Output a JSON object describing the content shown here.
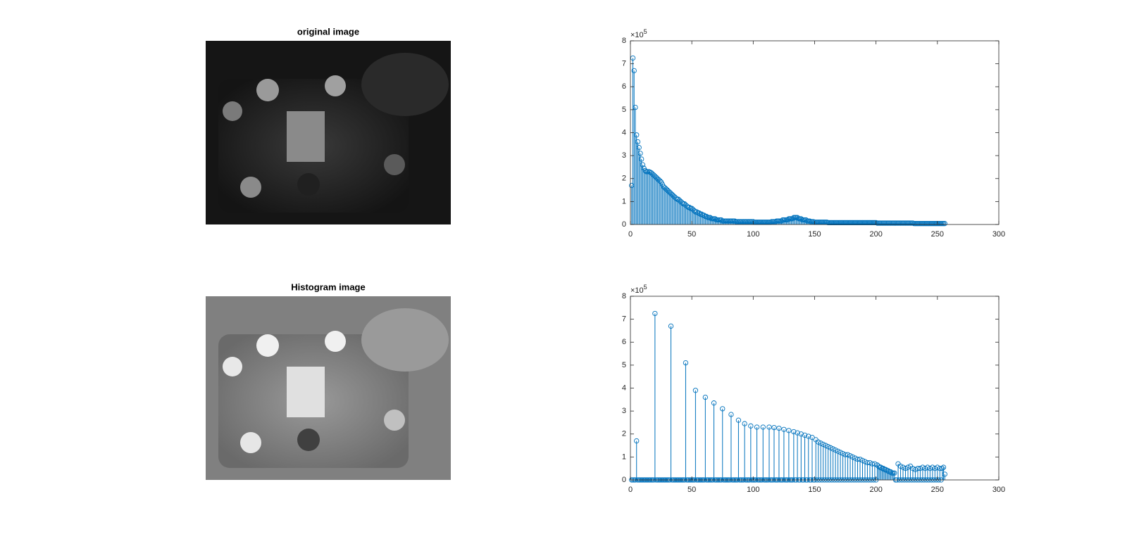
{
  "images": [
    {
      "title": "original image"
    },
    {
      "title": "Histogram image"
    }
  ],
  "chart_data": [
    {
      "type": "stem",
      "color": "#0072bd",
      "xlim": [
        0,
        300
      ],
      "xticks": [
        0,
        50,
        100,
        150,
        200,
        250,
        300
      ],
      "ylim": [
        0,
        8
      ],
      "yticks": [
        0,
        1,
        2,
        3,
        4,
        5,
        6,
        7,
        8
      ],
      "y_multiplier": "×10",
      "y_multiplier_exponent": "5",
      "x": [
        1,
        2,
        3,
        4,
        5,
        6,
        7,
        8,
        9,
        10,
        11,
        12,
        13,
        14,
        15,
        16,
        17,
        18,
        19,
        20,
        21,
        22,
        23,
        24,
        25,
        26,
        27,
        28,
        29,
        30,
        31,
        32,
        33,
        34,
        35,
        36,
        37,
        38,
        39,
        40,
        41,
        42,
        43,
        44,
        45,
        46,
        47,
        48,
        49,
        50,
        51,
        52,
        53,
        54,
        55,
        56,
        57,
        58,
        59,
        60,
        61,
        62,
        63,
        64,
        65,
        66,
        67,
        68,
        69,
        70,
        71,
        72,
        73,
        74,
        75,
        76,
        77,
        78,
        79,
        80,
        81,
        82,
        83,
        84,
        85,
        86,
        87,
        88,
        89,
        90,
        91,
        92,
        93,
        94,
        95,
        96,
        97,
        98,
        99,
        100,
        101,
        102,
        103,
        104,
        105,
        106,
        107,
        108,
        109,
        110,
        111,
        112,
        113,
        114,
        115,
        116,
        117,
        118,
        119,
        120,
        121,
        122,
        123,
        124,
        125,
        126,
        127,
        128,
        129,
        130,
        131,
        132,
        133,
        134,
        135,
        136,
        137,
        138,
        139,
        140,
        141,
        142,
        143,
        144,
        145,
        146,
        147,
        148,
        149,
        150,
        151,
        152,
        153,
        154,
        155,
        156,
        157,
        158,
        159,
        160,
        161,
        162,
        163,
        164,
        165,
        166,
        167,
        168,
        169,
        170,
        171,
        172,
        173,
        174,
        175,
        176,
        177,
        178,
        179,
        180,
        181,
        182,
        183,
        184,
        185,
        186,
        187,
        188,
        189,
        190,
        191,
        192,
        193,
        194,
        195,
        196,
        197,
        198,
        199,
        200,
        201,
        202,
        203,
        204,
        205,
        206,
        207,
        208,
        209,
        210,
        211,
        212,
        213,
        214,
        215,
        216,
        217,
        218,
        219,
        220,
        221,
        222,
        223,
        224,
        225,
        226,
        227,
        228,
        229,
        230,
        231,
        232,
        233,
        234,
        235,
        236,
        237,
        238,
        239,
        240,
        241,
        242,
        243,
        244,
        245,
        246,
        247,
        248,
        249,
        250,
        251,
        252,
        253,
        254,
        255,
        256
      ],
      "values": [
        1.7,
        7.25,
        6.7,
        5.1,
        3.9,
        3.6,
        3.35,
        3.1,
        2.85,
        2.6,
        2.45,
        2.35,
        2.3,
        2.3,
        2.3,
        2.28,
        2.25,
        2.2,
        2.15,
        2.1,
        2.05,
        2.0,
        1.95,
        1.9,
        1.85,
        1.75,
        1.65,
        1.6,
        1.55,
        1.5,
        1.45,
        1.4,
        1.35,
        1.3,
        1.25,
        1.2,
        1.15,
        1.1,
        1.1,
        1.05,
        1.0,
        0.95,
        0.9,
        0.9,
        0.85,
        0.8,
        0.75,
        0.75,
        0.7,
        0.7,
        0.65,
        0.6,
        0.55,
        0.55,
        0.5,
        0.5,
        0.45,
        0.45,
        0.4,
        0.4,
        0.35,
        0.35,
        0.3,
        0.3,
        0.3,
        0.25,
        0.25,
        0.25,
        0.25,
        0.2,
        0.2,
        0.2,
        0.2,
        0.2,
        0.15,
        0.15,
        0.15,
        0.15,
        0.15,
        0.15,
        0.15,
        0.15,
        0.15,
        0.15,
        0.15,
        0.12,
        0.12,
        0.12,
        0.12,
        0.12,
        0.12,
        0.12,
        0.12,
        0.12,
        0.12,
        0.12,
        0.12,
        0.12,
        0.12,
        0.12,
        0.1,
        0.1,
        0.1,
        0.1,
        0.1,
        0.1,
        0.1,
        0.1,
        0.1,
        0.1,
        0.1,
        0.1,
        0.1,
        0.1,
        0.12,
        0.12,
        0.12,
        0.12,
        0.15,
        0.15,
        0.15,
        0.15,
        0.15,
        0.2,
        0.2,
        0.2,
        0.2,
        0.2,
        0.25,
        0.25,
        0.25,
        0.25,
        0.3,
        0.3,
        0.3,
        0.3,
        0.25,
        0.25,
        0.25,
        0.2,
        0.2,
        0.2,
        0.2,
        0.15,
        0.15,
        0.15,
        0.12,
        0.12,
        0.12,
        0.1,
        0.1,
        0.1,
        0.1,
        0.1,
        0.1,
        0.1,
        0.1,
        0.1,
        0.1,
        0.1,
        0.08,
        0.08,
        0.08,
        0.08,
        0.08,
        0.08,
        0.08,
        0.08,
        0.08,
        0.08,
        0.08,
        0.08,
        0.08,
        0.08,
        0.08,
        0.08,
        0.08,
        0.08,
        0.08,
        0.08,
        0.08,
        0.08,
        0.08,
        0.08,
        0.08,
        0.08,
        0.08,
        0.08,
        0.08,
        0.08,
        0.08,
        0.08,
        0.08,
        0.08,
        0.08,
        0.08,
        0.08,
        0.08,
        0.08,
        0.08,
        0.06,
        0.06,
        0.06,
        0.06,
        0.06,
        0.06,
        0.06,
        0.06,
        0.06,
        0.06,
        0.06,
        0.06,
        0.06,
        0.06,
        0.06,
        0.06,
        0.06,
        0.06,
        0.06,
        0.06,
        0.06,
        0.06,
        0.06,
        0.06,
        0.06,
        0.06,
        0.06,
        0.06,
        0.06,
        0.06,
        0.04,
        0.04,
        0.04,
        0.04,
        0.04,
        0.04,
        0.04,
        0.04,
        0.04,
        0.04,
        0.04,
        0.04,
        0.04,
        0.04,
        0.04,
        0.04,
        0.04,
        0.04,
        0.04,
        0.04,
        0.04,
        0.04,
        0.04,
        0.04,
        0.04,
        0.04
      ]
    },
    {
      "type": "stem",
      "color": "#0072bd",
      "xlim": [
        0,
        300
      ],
      "xticks": [
        0,
        50,
        100,
        150,
        200,
        250,
        300
      ],
      "ylim": [
        0,
        8
      ],
      "yticks": [
        0,
        1,
        2,
        3,
        4,
        5,
        6,
        7,
        8
      ],
      "y_multiplier": "×10",
      "y_multiplier_exponent": "5",
      "x": [
        1,
        2,
        3,
        4,
        5,
        6,
        7,
        8,
        9,
        10,
        11,
        12,
        13,
        14,
        15,
        16,
        17,
        18,
        19,
        20,
        21,
        22,
        23,
        24,
        25,
        26,
        27,
        28,
        29,
        30,
        31,
        32,
        33,
        34,
        35,
        36,
        37,
        38,
        39,
        40,
        41,
        42,
        43,
        44,
        45,
        46,
        47,
        48,
        49,
        50,
        51,
        52,
        53,
        54,
        55,
        56,
        57,
        58,
        59,
        60,
        61,
        62,
        63,
        64,
        65,
        66,
        67,
        68,
        69,
        70,
        71,
        72,
        73,
        74,
        75,
        76,
        77,
        78,
        79,
        80,
        81,
        82,
        83,
        84,
        85,
        86,
        87,
        88,
        89,
        90,
        91,
        92,
        93,
        94,
        95,
        96,
        97,
        98,
        99,
        100,
        101,
        102,
        103,
        104,
        105,
        106,
        107,
        108,
        109,
        110,
        111,
        112,
        113,
        114,
        115,
        116,
        117,
        118,
        119,
        120,
        121,
        122,
        123,
        124,
        125,
        126,
        127,
        128,
        129,
        130,
        131,
        132,
        133,
        134,
        135,
        136,
        137,
        138,
        139,
        140,
        141,
        142,
        143,
        144,
        145,
        146,
        147,
        148,
        149,
        150,
        151,
        152,
        153,
        154,
        155,
        156,
        157,
        158,
        159,
        160,
        161,
        162,
        163,
        164,
        165,
        166,
        167,
        168,
        169,
        170,
        171,
        172,
        173,
        174,
        175,
        176,
        177,
        178,
        179,
        180,
        181,
        182,
        183,
        184,
        185,
        186,
        187,
        188,
        189,
        190,
        191,
        192,
        193,
        194,
        195,
        196,
        197,
        198,
        199,
        200,
        201,
        202,
        203,
        204,
        205,
        206,
        207,
        208,
        209,
        210,
        211,
        212,
        213,
        214,
        215,
        216,
        217,
        218,
        219,
        220,
        221,
        222,
        223,
        224,
        225,
        226,
        227,
        228,
        229,
        230,
        231,
        232,
        233,
        234,
        235,
        236,
        237,
        238,
        239,
        240,
        241,
        242,
        243,
        244,
        245,
        246,
        247,
        248,
        249,
        250,
        251,
        252,
        253,
        254,
        255,
        256
      ],
      "values": [
        0,
        0,
        0,
        0,
        1.7,
        0,
        0,
        0,
        0,
        0,
        0,
        0,
        0,
        0,
        0,
        0,
        0,
        0,
        0,
        7.25,
        0,
        0,
        0,
        0,
        0,
        0,
        0,
        0,
        0,
        0,
        0,
        0,
        6.7,
        0,
        0,
        0,
        0,
        0,
        0,
        0,
        0,
        0,
        0,
        0,
        5.1,
        0,
        0,
        0,
        0,
        0,
        0,
        0,
        3.9,
        0,
        0,
        0,
        0,
        0,
        0,
        0,
        3.6,
        0,
        0,
        0,
        0,
        0,
        0,
        3.35,
        0,
        0,
        0,
        0,
        0,
        0,
        3.1,
        0,
        0,
        0,
        0,
        0,
        0,
        2.85,
        0,
        0,
        0,
        0,
        0,
        2.6,
        0,
        0,
        0,
        0,
        2.45,
        0,
        0,
        0,
        0,
        2.35,
        0,
        0,
        0,
        0,
        2.3,
        0,
        0,
        0,
        0,
        2.3,
        0,
        0,
        0,
        0,
        2.3,
        0,
        0,
        0,
        2.28,
        0,
        0,
        0,
        2.25,
        0,
        0,
        0,
        2.2,
        0,
        0,
        0,
        2.15,
        0,
        0,
        0,
        2.1,
        0,
        0,
        2.05,
        0,
        0,
        2.0,
        0,
        0,
        1.95,
        0,
        0,
        1.9,
        0,
        0,
        1.85,
        0,
        0,
        1.75,
        0,
        1.65,
        0,
        1.6,
        0,
        1.55,
        0,
        1.5,
        0,
        1.45,
        0,
        1.4,
        0,
        1.35,
        0,
        1.3,
        0,
        1.25,
        0,
        1.2,
        0,
        1.15,
        0,
        1.1,
        0,
        1.1,
        0,
        1.05,
        0,
        1.0,
        0,
        0.95,
        0,
        0.9,
        0,
        0.9,
        0,
        0.85,
        0,
        0.8,
        0,
        0.75,
        0,
        0.75,
        0,
        0.7,
        0,
        0.7,
        0,
        0.65,
        0.6,
        0.55,
        0.55,
        0.5,
        0.5,
        0.45,
        0.45,
        0.4,
        0.4,
        0.35,
        0.35,
        0.3,
        0.3,
        0.3,
        0,
        0,
        0.7,
        0,
        0.6,
        0,
        0.55,
        0,
        0.5,
        0,
        0.55,
        0,
        0.6,
        0,
        0.5,
        0,
        0.45,
        0,
        0.5,
        0,
        0.5,
        0,
        0.55,
        0,
        0.5,
        0,
        0.55,
        0,
        0.5,
        0,
        0.55,
        0,
        0.5,
        0,
        0.55,
        0,
        0.5,
        0,
        0.5,
        0.55,
        0.25
      ]
    }
  ]
}
